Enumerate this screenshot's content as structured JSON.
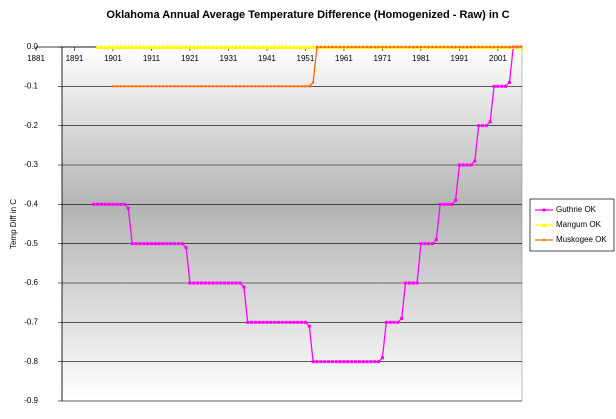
{
  "chart_data": {
    "type": "line",
    "title": "Oklahoma Annual Average Temperature Difference (Homogenized - Raw) in C",
    "y_label": "Temp Diff in C",
    "x": [
      1881,
      1882,
      1883,
      1884,
      1885,
      1886,
      1887,
      1888,
      1889,
      1890,
      1891,
      1892,
      1893,
      1894,
      1895,
      1896,
      1897,
      1898,
      1899,
      1900,
      1901,
      1902,
      1903,
      1904,
      1905,
      1906,
      1907,
      1908,
      1909,
      1910,
      1911,
      1912,
      1913,
      1914,
      1915,
      1916,
      1917,
      1918,
      1919,
      1920,
      1921,
      1922,
      1923,
      1924,
      1925,
      1926,
      1927,
      1928,
      1929,
      1930,
      1931,
      1932,
      1933,
      1934,
      1935,
      1936,
      1937,
      1938,
      1939,
      1940,
      1941,
      1942,
      1943,
      1944,
      1945,
      1946,
      1947,
      1948,
      1949,
      1950,
      1951,
      1952,
      1953,
      1954,
      1955,
      1956,
      1957,
      1958,
      1959,
      1960,
      1961,
      1962,
      1963,
      1964,
      1965,
      1966,
      1967,
      1968,
      1969,
      1970,
      1971,
      1972,
      1973,
      1974,
      1975,
      1976,
      1977,
      1978,
      1979,
      1980,
      1981,
      1982,
      1983,
      1984,
      1985,
      1986,
      1987,
      1988,
      1989,
      1990,
      1991,
      1992,
      1993,
      1994,
      1995,
      1996,
      1997,
      1998,
      1999,
      2000,
      2001,
      2002,
      2003,
      2004,
      2005,
      2006,
      2007
    ],
    "xlim": [
      1881,
      2007
    ],
    "xticks": [
      1881,
      1891,
      1901,
      1911,
      1921,
      1931,
      1941,
      1951,
      1961,
      1971,
      1981,
      1991,
      2001
    ],
    "ylim": [
      -0.9,
      0
    ],
    "yticks": [
      {
        "value": 0,
        "label": "0.0"
      },
      -0.1,
      -0.2,
      -0.3,
      -0.4,
      -0.5,
      -0.6,
      -0.7,
      -0.8,
      -0.9
    ],
    "grid": true,
    "legend": "right",
    "series": [
      {
        "name": "Guthrie OK",
        "color": "#ff00ff",
        "marker": "square",
        "values": [
          null,
          null,
          null,
          null,
          null,
          null,
          null,
          null,
          null,
          null,
          null,
          null,
          null,
          null,
          null,
          -0.4,
          -0.4,
          -0.4,
          -0.4,
          -0.4,
          -0.4,
          -0.4,
          -0.4,
          -0.4,
          -0.41,
          -0.5,
          -0.5,
          -0.5,
          -0.5,
          -0.5,
          -0.5,
          -0.5,
          -0.5,
          -0.5,
          -0.5,
          -0.5,
          -0.5,
          -0.5,
          -0.5,
          -0.51,
          -0.6,
          -0.6,
          -0.6,
          -0.6,
          -0.6,
          -0.6,
          -0.6,
          -0.6,
          -0.6,
          -0.6,
          -0.6,
          -0.6,
          -0.6,
          -0.6,
          -0.61,
          -0.7,
          -0.7,
          -0.7,
          -0.7,
          -0.7,
          -0.7,
          -0.7,
          -0.7,
          -0.7,
          -0.7,
          -0.7,
          -0.7,
          -0.7,
          -0.7,
          -0.7,
          -0.7,
          -0.71,
          -0.8,
          -0.8,
          -0.8,
          -0.8,
          -0.8,
          -0.8,
          -0.8,
          -0.8,
          -0.8,
          -0.8,
          -0.8,
          -0.8,
          -0.8,
          -0.8,
          -0.8,
          -0.8,
          -0.8,
          -0.8,
          -0.79,
          -0.7,
          -0.7,
          -0.7,
          -0.7,
          -0.69,
          -0.6,
          -0.6,
          -0.6,
          -0.6,
          -0.5,
          -0.5,
          -0.5,
          -0.5,
          -0.49,
          -0.4,
          -0.4,
          -0.4,
          -0.4,
          -0.39,
          -0.3,
          -0.3,
          -0.3,
          -0.3,
          -0.29,
          -0.2,
          -0.2,
          -0.2,
          -0.19,
          -0.1,
          -0.1,
          -0.1,
          -0.1,
          -0.09,
          0,
          0,
          0
        ]
      },
      {
        "name": "Mangum OK",
        "color": "#ffff00",
        "marker": "triangle",
        "values": [
          null,
          null,
          null,
          null,
          null,
          null,
          null,
          null,
          null,
          null,
          null,
          null,
          null,
          null,
          null,
          null,
          0,
          0,
          0,
          0,
          0,
          0,
          0,
          0,
          0,
          0,
          0,
          0,
          0,
          0,
          0,
          0,
          0,
          0,
          0,
          0,
          0,
          0,
          0,
          0,
          0,
          0,
          0,
          0,
          0,
          0,
          0,
          0,
          0,
          0,
          0,
          0,
          0,
          0,
          0,
          0,
          0,
          0,
          0,
          0,
          0,
          0,
          0,
          0,
          0,
          0,
          0,
          0,
          0,
          0,
          0,
          0,
          0,
          0,
          0,
          0,
          0,
          0,
          0,
          0,
          0,
          0,
          0,
          0,
          0,
          0,
          0,
          0,
          0,
          0,
          0,
          0,
          0,
          0,
          0,
          0,
          0,
          0,
          0,
          0,
          0,
          0,
          0,
          0,
          0,
          0,
          0,
          0,
          0,
          0,
          0,
          0,
          0,
          0,
          0,
          0,
          0,
          0,
          0,
          0,
          0,
          0,
          0,
          0,
          0,
          0,
          0
        ]
      },
      {
        "name": "Muskogee OK",
        "color": "#ff6600",
        "marker": "dot",
        "values": [
          null,
          null,
          null,
          null,
          null,
          null,
          null,
          null,
          null,
          null,
          null,
          null,
          null,
          null,
          null,
          null,
          null,
          null,
          null,
          null,
          -0.1,
          -0.1,
          -0.1,
          -0.1,
          -0.1,
          -0.1,
          -0.1,
          -0.1,
          -0.1,
          -0.1,
          -0.1,
          -0.1,
          -0.1,
          -0.1,
          -0.1,
          -0.1,
          -0.1,
          -0.1,
          -0.1,
          -0.1,
          -0.1,
          -0.1,
          -0.1,
          -0.1,
          -0.1,
          -0.1,
          -0.1,
          -0.1,
          -0.1,
          -0.1,
          -0.1,
          -0.1,
          -0.1,
          -0.1,
          -0.1,
          -0.1,
          -0.1,
          -0.1,
          -0.1,
          -0.1,
          -0.1,
          -0.1,
          -0.1,
          -0.1,
          -0.1,
          -0.1,
          -0.1,
          -0.1,
          -0.1,
          -0.1,
          -0.1,
          -0.1,
          -0.09,
          0,
          0,
          0,
          0,
          0,
          0,
          0,
          0,
          0,
          0,
          0,
          0,
          0,
          0,
          0,
          0,
          0,
          0,
          0,
          0,
          0,
          0,
          0,
          0,
          0,
          0,
          0,
          0,
          0,
          0,
          0,
          0,
          0,
          0,
          0,
          0,
          0,
          0,
          0,
          0,
          0,
          0,
          0,
          0,
          0,
          0,
          0,
          0,
          0,
          0,
          0,
          0,
          0,
          0
        ]
      }
    ]
  }
}
